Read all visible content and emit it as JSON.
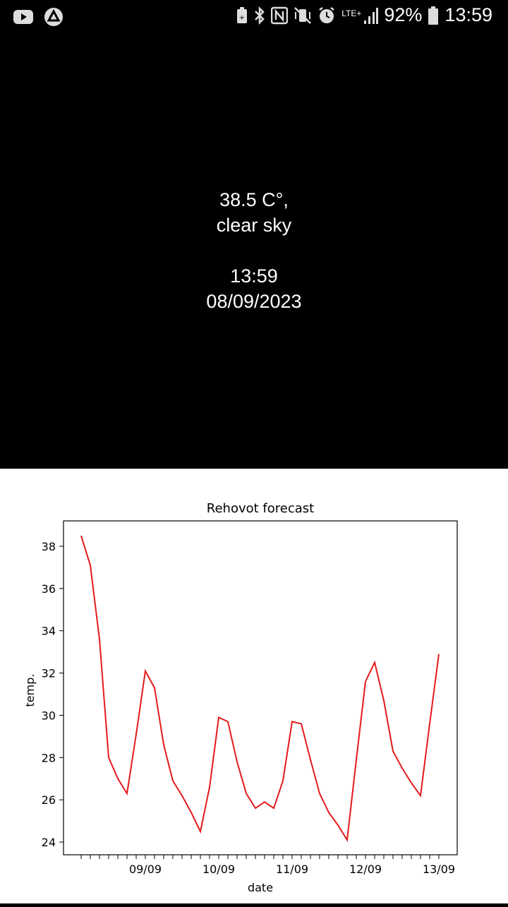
{
  "status_bar": {
    "left_icons": [
      "youtube-icon",
      "app-triangle-icon"
    ],
    "right_icons": [
      "battery-saver-icon",
      "bluetooth-icon",
      "nfc-icon",
      "vibrate-mute-icon",
      "alarm-icon",
      "lte-signal-icon",
      "battery-icon"
    ],
    "network_label": "LTE+",
    "battery_text": "92%",
    "time": "13:59"
  },
  "weather": {
    "temperature_text": "38.5 C°,",
    "condition": "clear sky",
    "time": "13:59",
    "date": "08/09/2023"
  },
  "chart_data": {
    "type": "line",
    "title": "Rehovot forecast",
    "xlabel": "date",
    "ylabel": "temp.",
    "x_ticks": [
      "09/09",
      "10/09",
      "11/09",
      "12/09",
      "13/09"
    ],
    "yticks": [
      24,
      26,
      28,
      30,
      32,
      34,
      36,
      38
    ],
    "ylim": [
      23.4,
      39.2
    ],
    "line_color": "#e41a1c",
    "x": [
      "08/09 15:00",
      "08/09 18:00",
      "08/09 21:00",
      "09/09 00:00",
      "09/09 03:00",
      "09/09 06:00",
      "09/09 09:00",
      "09/09 12:00",
      "09/09 15:00",
      "09/09 18:00",
      "09/09 21:00",
      "10/09 00:00",
      "10/09 03:00",
      "10/09 06:00",
      "10/09 09:00",
      "10/09 12:00",
      "10/09 15:00",
      "10/09 18:00",
      "10/09 21:00",
      "11/09 00:00",
      "11/09 03:00",
      "11/09 06:00",
      "11/09 09:00",
      "11/09 12:00",
      "11/09 15:00",
      "11/09 18:00",
      "11/09 21:00",
      "12/09 00:00",
      "12/09 03:00",
      "12/09 06:00",
      "12/09 09:00",
      "12/09 12:00",
      "12/09 15:00",
      "12/09 18:00",
      "12/09 21:00",
      "13/09 00:00",
      "13/09 03:00",
      "13/09 06:00",
      "13/09 09:00",
      "13/09 12:00"
    ],
    "values": [
      38.5,
      37.1,
      33.6,
      28.0,
      27.0,
      26.3,
      29.1,
      32.1,
      31.3,
      28.6,
      26.9,
      26.2,
      25.4,
      24.5,
      26.6,
      29.9,
      29.7,
      27.8,
      26.3,
      25.6,
      25.9,
      25.6,
      26.9,
      29.7,
      29.6,
      27.9,
      26.3,
      25.4,
      24.8,
      24.1,
      27.9,
      31.6,
      32.5,
      30.7,
      28.3,
      27.5,
      26.8,
      26.2,
      29.6,
      32.9
    ]
  }
}
